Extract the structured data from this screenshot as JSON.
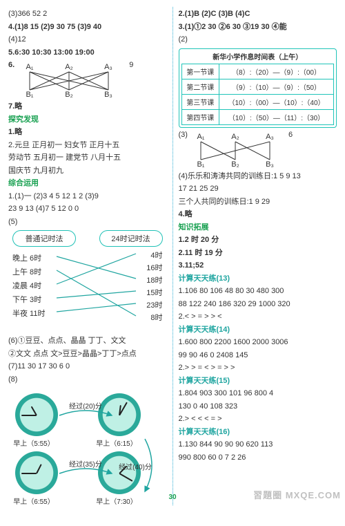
{
  "left": {
    "l1": "(3)366  52  2",
    "l2": "4.(1)8  15   (2)9  30  75   (3)9  40",
    "l3": "(4)12",
    "l4": "5.6:30   10:30   13:00   19:00",
    "num6": "6.",
    "topA": [
      "A₁",
      "A₂",
      "A₃"
    ],
    "botB": [
      "B₁",
      "B₂",
      "B₃"
    ],
    "nine": "9",
    "l6": "7.略",
    "h1": "探究发现",
    "l7": "1.略",
    "l8": "2.元旦  正月初一   妇女节  正月十五",
    "l9": "劳动节  五月初一   建党节  八月十五",
    "l10": "国庆节  九月初九",
    "h2": "综合运用",
    "l11": "1.(1)一   (2)3  4  5  12  1  2   (3)9",
    "l12": "23  9  13   (4)7  5  12  0  0",
    "l13": "(5)",
    "oval_left": "普通记时法",
    "oval_right": "24时记时法",
    "tm_left": [
      "晚上 6时",
      "上午 8时",
      "凌晨 4时",
      "下午 3时",
      "半夜 11时"
    ],
    "tm_right": [
      "4时",
      "16时",
      "18时",
      "15时",
      "23时",
      "8时"
    ],
    "cross_pairs": [
      [
        0,
        2
      ],
      [
        1,
        5
      ],
      [
        2,
        0
      ],
      [
        3,
        3
      ],
      [
        4,
        4
      ]
    ],
    "l14": "(6)①豆豆、点点、晶晶   丁丁、文文",
    "l15": "②文文  点点   文>豆豆>晶晶>丁丁>点点",
    "l16": "(7)11  30  17  30  6  0",
    "l17": "(8)",
    "clock_caps": [
      "早上（5:55）",
      "早上（6:15）",
      "早上（6:55）",
      "早上（7:30）"
    ],
    "clock_labels": [
      "经过(20)分",
      "经过(40)分",
      "经过(35)分"
    ],
    "hands": [
      {
        "h": -30,
        "m": 270
      },
      {
        "h": 7,
        "m": 30
      },
      {
        "h": 27,
        "m": 270
      },
      {
        "h": 45,
        "m": 120
      }
    ]
  },
  "right": {
    "r1": "2.(1)B   (2)C   (3)B   (4)C",
    "r2": "3.(1)①2  30   ②6  30   ③19  30   ④能",
    "r3": "(2)",
    "sched_title": "新华小学作息时间表（上午）",
    "sched_rows": [
      [
        "第一节课",
        "（8）:（20）—（9）:（00）"
      ],
      [
        "第二节课",
        "（9）:（10）—（9）:（50）"
      ],
      [
        "第三节课",
        "（10）:（00）—（10）:（40）"
      ],
      [
        "第四节课",
        "（10）:（50）—（11）:（30）"
      ]
    ],
    "r4": "(3)",
    "topA": [
      "A₁",
      "A₂",
      "A₃"
    ],
    "botB": [
      "B₁",
      "B₂",
      "B₃"
    ],
    "six": "6",
    "r5": "(4)乐乐和涛涛共同的训练日:1  5  9  13",
    "r6": "17  21  25  29",
    "r7": "三个人共同的训练日:1   9   29",
    "r8": "4.略",
    "h3": "知识拓展",
    "r9": "1.2 时 20 分",
    "r10": "2.11 时 19 分",
    "r11": "3.11;52",
    "h4": "计算天天练(13)",
    "r12": "1.106  80  106  48  80  30   480  300",
    "r13": "88  122  240  186  320  29  1000  320",
    "r14": "2.<  >  =  >  >  <",
    "h5": "计算天天练(14)",
    "r15": "1.600  800  2200  1600  2000  3006",
    "r16": "99  90  46  0  2408  145",
    "r17": "2.>  >  =  <  >  =  >  >",
    "h6": "计算天天练(15)",
    "r18": "1.804  903  300  101  96  800  4",
    "r19": "130  0  40  108  323",
    "r20": "2.>  <  <  <  =  >",
    "h7": "计算天天练(16)",
    "r21": "1.130  844  90  90  90  620  113",
    "r22": "990  800  60  0  7  2  26"
  },
  "pagenum": "30",
  "watermark": "習題圈 MXQE.COM"
}
